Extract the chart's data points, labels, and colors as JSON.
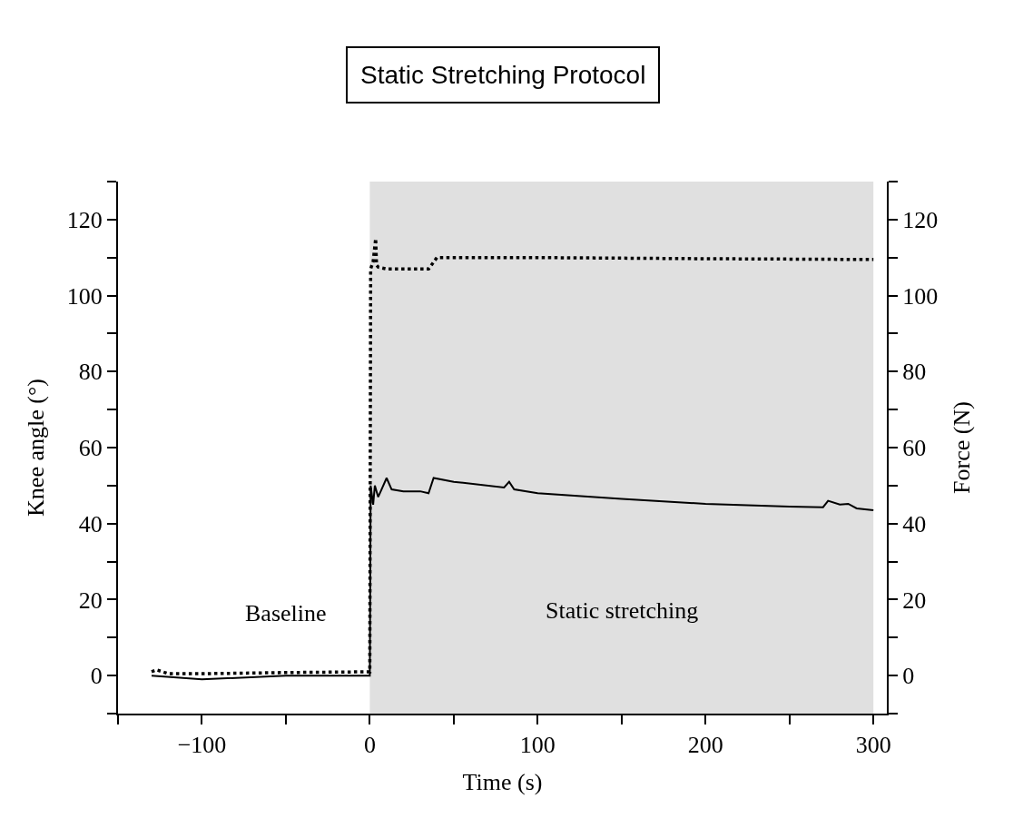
{
  "chart_data": {
    "type": "line",
    "title": "Static Stretching Protocol",
    "xlabel": "Time (s)",
    "ylabel": "Knee angle (°)",
    "y2label": "Force (N)",
    "xlim": [
      -150,
      308
    ],
    "xticks": [
      {
        "value": -150,
        "label": null
      },
      -100,
      {
        "value": -50,
        "label": null
      },
      0,
      {
        "value": 50,
        "label": null
      },
      100,
      {
        "value": 150,
        "label": null
      },
      200,
      {
        "value": 250,
        "label": null
      },
      300
    ],
    "ylim": [
      -10,
      130
    ],
    "yticks": [
      {
        "value": -10,
        "label": null
      },
      0,
      {
        "value": 10,
        "label": null
      },
      20,
      {
        "value": 30,
        "label": null
      },
      40,
      {
        "value": 50,
        "label": null
      },
      60,
      {
        "value": 70,
        "label": null
      },
      80,
      {
        "value": 90,
        "label": null
      },
      100,
      {
        "value": 110,
        "label": null
      },
      120,
      {
        "value": 130,
        "label": null
      }
    ],
    "y2lim": [
      -10,
      130
    ],
    "y2ticks": [
      {
        "value": -10,
        "label": null
      },
      0,
      {
        "value": 10,
        "label": null
      },
      20,
      {
        "value": 30,
        "label": null
      },
      40,
      {
        "value": 50,
        "label": null
      },
      60,
      {
        "value": 70,
        "label": null
      },
      80,
      {
        "value": 90,
        "label": null
      },
      100,
      {
        "value": 110,
        "label": null
      },
      120,
      {
        "value": 130,
        "label": null
      }
    ],
    "marker": "none",
    "bands": [
      {
        "axis": "x",
        "from": 0,
        "to": 300,
        "color": "#e0e0e0"
      }
    ],
    "annotations": [
      "Baseline",
      "Static stretching"
    ],
    "series": [
      {
        "color": "#000000",
        "line_style": "dotted",
        "x": [
          -130,
          -127,
          -120,
          -100,
          -50,
          0,
          0.5,
          2,
          3,
          3.5,
          4,
          5,
          10,
          35,
          40,
          100,
          200,
          300
        ],
        "values": [
          1,
          1.5,
          0.5,
          0.5,
          0.8,
          1,
          107,
          109,
          113,
          115,
          108,
          107.5,
          107,
          107,
          110,
          110,
          109.7,
          109.5
        ]
      },
      {
        "color": "#000000",
        "line_style": "solid",
        "axis": "y2",
        "x": [
          -130,
          -100,
          -50,
          0,
          0.5,
          2,
          3,
          5,
          7,
          10,
          13,
          20,
          30,
          35,
          38,
          50,
          80,
          83,
          86,
          100,
          150,
          200,
          250,
          270,
          273,
          280,
          285,
          290,
          300
        ],
        "values": [
          0,
          -1,
          0,
          0,
          50,
          45,
          50,
          47,
          49,
          52,
          49,
          48.5,
          48.5,
          48,
          52,
          51,
          49.5,
          51,
          49,
          48,
          46.5,
          45.2,
          44.5,
          44.3,
          46,
          45,
          45.2,
          44,
          43.5
        ]
      }
    ]
  }
}
